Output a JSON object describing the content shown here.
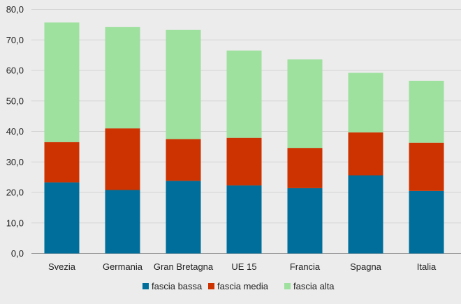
{
  "chart_data": {
    "type": "bar",
    "stacked": true,
    "categories": [
      "Svezia",
      "Germania",
      "Gran Bretagna",
      "UE 15",
      "Francia",
      "Spagna",
      "Italia"
    ],
    "series": [
      {
        "name": "fascia bassa",
        "color": "#006e9a",
        "values": [
          23.3,
          20.8,
          23.8,
          22.3,
          21.4,
          25.6,
          20.5
        ]
      },
      {
        "name": "fascia media",
        "color": "#cc3300",
        "values": [
          13.2,
          20.2,
          13.7,
          15.6,
          13.2,
          14.1,
          15.8
        ]
      },
      {
        "name": "fascia alta",
        "color": "#9ee09e",
        "values": [
          39.2,
          33.2,
          35.8,
          28.6,
          29.0,
          19.5,
          20.3
        ]
      }
    ],
    "ylim": [
      0,
      80
    ],
    "ytick_step": 10,
    "ytick_labels": [
      "0,0",
      "10,0",
      "20,0",
      "30,0",
      "40,0",
      "50,0",
      "60,0",
      "70,0",
      "80,0"
    ],
    "grid": true,
    "legend_position": "bottom"
  }
}
